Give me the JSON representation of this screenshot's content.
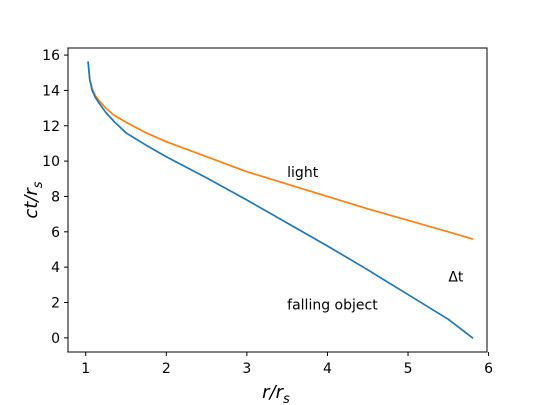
{
  "chart_data": {
    "type": "line",
    "xlabel": "r/r_s",
    "ylabel": "ct/r_s",
    "xlim": [
      0.78,
      5.98
    ],
    "ylim": [
      -0.8,
      16.4
    ],
    "xticks": [
      1,
      2,
      3,
      4,
      5,
      6
    ],
    "yticks": [
      0,
      2,
      4,
      6,
      8,
      10,
      12,
      14,
      16
    ],
    "grid": false,
    "series": [
      {
        "name": "light",
        "color": "#ff7f0e",
        "x": [
          1.03,
          1.05,
          1.08,
          1.12,
          1.17,
          1.25,
          1.35,
          1.5,
          1.75,
          2.0,
          2.5,
          3.0,
          3.5,
          4.0,
          4.5,
          5.0,
          5.5,
          5.8
        ],
        "y": [
          15.6,
          14.6,
          14.1,
          13.7,
          13.4,
          13.0,
          12.6,
          12.2,
          11.6,
          11.1,
          10.25,
          9.4,
          8.7,
          8.0,
          7.3,
          6.65,
          6.0,
          5.6
        ]
      },
      {
        "name": "falling object",
        "color": "#1f77b4",
        "x": [
          1.03,
          1.05,
          1.08,
          1.12,
          1.17,
          1.25,
          1.35,
          1.5,
          1.75,
          2.0,
          2.5,
          3.0,
          3.5,
          4.0,
          4.5,
          5.0,
          5.5,
          5.8
        ],
        "y": [
          15.6,
          14.6,
          14.0,
          13.6,
          13.25,
          12.75,
          12.25,
          11.6,
          10.9,
          10.25,
          9.05,
          7.8,
          6.5,
          5.2,
          3.85,
          2.45,
          1.05,
          0.0
        ]
      }
    ],
    "annotations": [
      {
        "text": "light",
        "x": 3.5,
        "y": 9.1
      },
      {
        "text": "falling object",
        "x": 3.5,
        "y": 1.6
      },
      {
        "text": "Δt",
        "x": 5.5,
        "y": 3.2
      }
    ]
  }
}
